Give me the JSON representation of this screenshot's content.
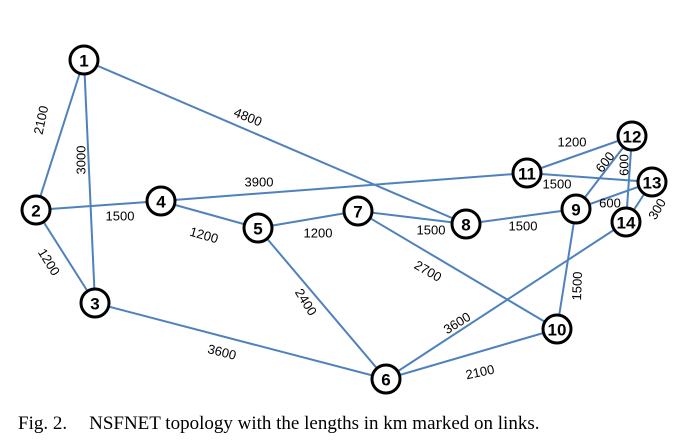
{
  "colors": {
    "edge": "#4f81bd",
    "node_stroke": "#000000",
    "node_fill": "#ffffff"
  },
  "nodes": [
    {
      "id": "1",
      "label": "1"
    },
    {
      "id": "2",
      "label": "2"
    },
    {
      "id": "3",
      "label": "3"
    },
    {
      "id": "4",
      "label": "4"
    },
    {
      "id": "5",
      "label": "5"
    },
    {
      "id": "6",
      "label": "6"
    },
    {
      "id": "7",
      "label": "7"
    },
    {
      "id": "8",
      "label": "8"
    },
    {
      "id": "9",
      "label": "9"
    },
    {
      "id": "10",
      "label": "10"
    },
    {
      "id": "11",
      "label": "11"
    },
    {
      "id": "12",
      "label": "12"
    },
    {
      "id": "13",
      "label": "13"
    },
    {
      "id": "14",
      "label": "14"
    }
  ],
  "links": [
    {
      "from": "1",
      "to": "2",
      "length": "2100"
    },
    {
      "from": "1",
      "to": "3",
      "length": "3000"
    },
    {
      "from": "1",
      "to": "8",
      "length": "4800"
    },
    {
      "from": "2",
      "to": "3",
      "length": "1200"
    },
    {
      "from": "2",
      "to": "4",
      "length": "1500"
    },
    {
      "from": "3",
      "to": "6",
      "length": "3600"
    },
    {
      "from": "4",
      "to": "5",
      "length": "1200"
    },
    {
      "from": "4",
      "to": "11",
      "length": "3900"
    },
    {
      "from": "5",
      "to": "6",
      "length": "2400"
    },
    {
      "from": "5",
      "to": "7",
      "length": "1200"
    },
    {
      "from": "6",
      "to": "10",
      "length": "2100"
    },
    {
      "from": "6",
      "to": "14",
      "length": "3600"
    },
    {
      "from": "7",
      "to": "8",
      "length": "1500"
    },
    {
      "from": "7",
      "to": "10",
      "length": "2700"
    },
    {
      "from": "8",
      "to": "9",
      "length": "1500"
    },
    {
      "from": "9",
      "to": "10",
      "length": "1500"
    },
    {
      "from": "9",
      "to": "12",
      "length": "600"
    },
    {
      "from": "9",
      "to": "13",
      "length": "600"
    },
    {
      "from": "11",
      "to": "12",
      "length": "1200"
    },
    {
      "from": "11",
      "to": "13",
      "length": "1500"
    },
    {
      "from": "12",
      "to": "14",
      "length": "600"
    },
    {
      "from": "13",
      "to": "14",
      "length": "300"
    }
  ],
  "caption": {
    "prefix": "Fig. 2.",
    "text": "NSFNET topology with the lengths in km marked on links."
  }
}
